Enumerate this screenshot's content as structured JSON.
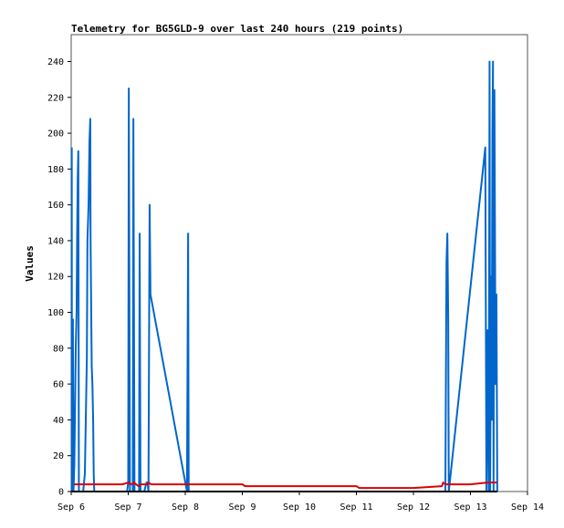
{
  "chart_data": {
    "type": "line",
    "title": "Telemetry for BG5GLD-9 over last 240 hours (219 points)",
    "xlabel": "",
    "ylabel": "Values",
    "grid": false,
    "xlim": [
      "Sep 6",
      "Sep 14"
    ],
    "ylim": [
      0,
      255
    ],
    "x_ticks": [
      "Sep 6",
      "Sep 7",
      "Sep 8",
      "Sep 9",
      "Sep 10",
      "Sep 11",
      "Sep 12",
      "Sep 13",
      "Sep 14"
    ],
    "y_ticks": [
      0,
      20,
      40,
      60,
      80,
      100,
      120,
      140,
      160,
      180,
      200,
      220,
      240
    ],
    "x_unit": "days since Sep 6 00:00",
    "colors": {
      "series_1": "#0066cc",
      "series_2": "#dd0000",
      "series_3": "#000000"
    },
    "series": [
      {
        "name": "",
        "color_key": "series_1",
        "points": [
          [
            0.01,
            192
          ],
          [
            0.013,
            0
          ],
          [
            0.03,
            96
          ],
          [
            0.04,
            0
          ],
          [
            0.055,
            15
          ],
          [
            0.08,
            80
          ],
          [
            0.095,
            100
          ],
          [
            0.105,
            144
          ],
          [
            0.115,
            175
          ],
          [
            0.125,
            190
          ],
          [
            0.135,
            0
          ],
          [
            0.15,
            0
          ],
          [
            0.21,
            0
          ],
          [
            0.24,
            10
          ],
          [
            0.275,
            75
          ],
          [
            0.285,
            140
          ],
          [
            0.305,
            160
          ],
          [
            0.32,
            195
          ],
          [
            0.335,
            208
          ],
          [
            0.34,
            140
          ],
          [
            0.36,
            70
          ],
          [
            0.372,
            60
          ],
          [
            0.385,
            40
          ],
          [
            0.395,
            10
          ],
          [
            0.405,
            0
          ],
          [
            0.98,
            0
          ],
          [
            1.0,
            5
          ],
          [
            1.01,
            225
          ],
          [
            1.03,
            0
          ],
          [
            1.05,
            0
          ],
          [
            1.08,
            0
          ],
          [
            1.09,
            208
          ],
          [
            1.11,
            0
          ],
          [
            1.15,
            0
          ],
          [
            1.19,
            0
          ],
          [
            1.2,
            144
          ],
          [
            1.215,
            0
          ],
          [
            1.28,
            0
          ],
          [
            1.32,
            5
          ],
          [
            1.34,
            5
          ],
          [
            1.355,
            0
          ],
          [
            1.375,
            160
          ],
          [
            1.39,
            110
          ],
          [
            2.03,
            0
          ],
          [
            2.05,
            144
          ],
          [
            2.06,
            0
          ],
          [
            6.56,
            0
          ],
          [
            6.58,
            128
          ],
          [
            6.595,
            144
          ],
          [
            6.61,
            96
          ],
          [
            6.62,
            0
          ],
          [
            7.26,
            192
          ],
          [
            7.28,
            0
          ],
          [
            7.3,
            90
          ],
          [
            7.32,
            0
          ],
          [
            7.335,
            240
          ],
          [
            7.345,
            0
          ],
          [
            7.36,
            120
          ],
          [
            7.372,
            40
          ],
          [
            7.385,
            200
          ],
          [
            7.395,
            240
          ],
          [
            7.405,
            0
          ],
          [
            7.42,
            224
          ],
          [
            7.44,
            60
          ],
          [
            7.455,
            110
          ],
          [
            7.47,
            0
          ]
        ]
      },
      {
        "name": "",
        "color_key": "series_2",
        "points": [
          [
            0.05,
            4
          ],
          [
            0.4,
            4
          ],
          [
            0.7,
            4
          ],
          [
            0.9,
            4
          ],
          [
            1.0,
            5
          ],
          [
            1.06,
            4
          ],
          [
            1.1,
            5
          ],
          [
            1.18,
            3
          ],
          [
            1.22,
            4
          ],
          [
            1.33,
            4
          ],
          [
            1.36,
            5
          ],
          [
            1.4,
            4
          ],
          [
            2.0,
            4
          ],
          [
            3.0,
            4
          ],
          [
            3.05,
            3
          ],
          [
            4.0,
            3
          ],
          [
            5.0,
            3
          ],
          [
            5.05,
            2
          ],
          [
            6.0,
            2
          ],
          [
            6.5,
            3
          ],
          [
            6.52,
            5
          ],
          [
            6.56,
            4
          ],
          [
            7.0,
            4
          ],
          [
            7.3,
            5
          ],
          [
            7.47,
            5
          ]
        ]
      },
      {
        "name": "",
        "color_key": "series_3",
        "points": [
          [
            0.0,
            0
          ],
          [
            7.47,
            0
          ]
        ]
      }
    ]
  }
}
